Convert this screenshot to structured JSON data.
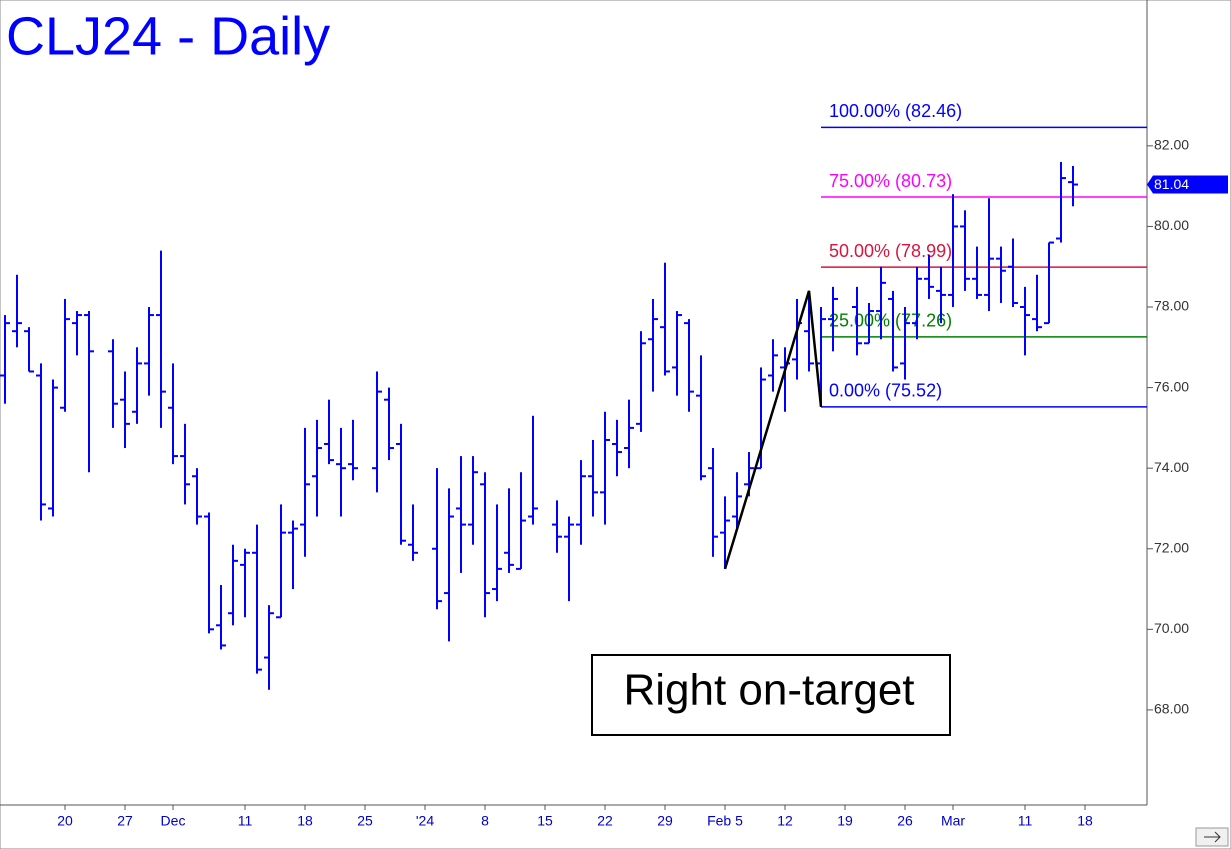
{
  "chart_data": {
    "type": "ohlc",
    "title": "CLJ24 - Daily",
    "color": "#0000ff",
    "categories": [
      null,
      null,
      null,
      null,
      null,
      "20",
      null,
      null,
      null,
      null,
      "27",
      null,
      null,
      null,
      "Dec",
      null,
      null,
      null,
      null,
      null,
      "11",
      null,
      null,
      null,
      null,
      "18",
      null,
      null,
      null,
      null,
      "25",
      null,
      null,
      null,
      null,
      "'24",
      null,
      null,
      null,
      null,
      "8",
      null,
      null,
      null,
      null,
      "15",
      null,
      null,
      null,
      null,
      "22",
      null,
      null,
      null,
      null,
      "29",
      null,
      null,
      null,
      null,
      "Feb 5",
      null,
      null,
      null,
      null,
      "12",
      null,
      null,
      null,
      null,
      "19",
      null,
      null,
      null,
      null,
      "26",
      null,
      null,
      null,
      "Mar",
      null,
      null,
      null,
      null,
      null,
      "11",
      null,
      null,
      null,
      null,
      "18",
      null,
      null,
      null,
      null
    ],
    "ohlc": [
      [
        76.3,
        77.8,
        75.6,
        77.6
      ],
      [
        77.4,
        78.8,
        77.0,
        77.6
      ],
      [
        77.4,
        77.5,
        76.4,
        76.4
      ],
      [
        76.3,
        76.6,
        72.7,
        73.1
      ],
      [
        73.0,
        76.2,
        72.8,
        76.0
      ],
      [
        75.5,
        78.2,
        75.4,
        77.7
      ],
      [
        77.6,
        77.9,
        76.8,
        77.8
      ],
      [
        77.8,
        77.9,
        73.9,
        76.9
      ],
      null,
      [
        76.9,
        77.2,
        75.0,
        75.6
      ],
      [
        75.7,
        76.4,
        74.5,
        75.1
      ],
      [
        75.4,
        77.0,
        75.1,
        76.6
      ],
      [
        76.6,
        78.0,
        75.8,
        77.8
      ],
      [
        77.8,
        79.4,
        75.0,
        75.9
      ],
      [
        75.5,
        76.6,
        74.1,
        74.3
      ],
      [
        74.3,
        75.1,
        73.1,
        73.6
      ],
      [
        73.8,
        74.0,
        72.6,
        72.8
      ],
      [
        72.8,
        72.9,
        69.9,
        70.0
      ],
      [
        70.1,
        71.1,
        69.5,
        69.6
      ],
      [
        70.4,
        72.1,
        70.1,
        71.7
      ],
      [
        71.6,
        72.0,
        70.3,
        71.9
      ],
      [
        71.9,
        72.6,
        68.9,
        69.0
      ],
      [
        69.3,
        70.6,
        68.5,
        70.4
      ],
      [
        70.3,
        73.1,
        70.3,
        72.4
      ],
      [
        72.4,
        72.7,
        71.0,
        72.5
      ],
      [
        72.6,
        75.0,
        71.8,
        73.6
      ],
      [
        73.8,
        75.2,
        72.8,
        74.5
      ],
      [
        74.6,
        75.7,
        74.1,
        74.2
      ],
      [
        74.1,
        75.0,
        72.8,
        74.0
      ],
      [
        74.1,
        75.2,
        73.7,
        74.0
      ],
      null,
      [
        74.0,
        76.4,
        73.4,
        75.9
      ],
      [
        75.7,
        76.0,
        74.2,
        74.5
      ],
      [
        74.6,
        75.1,
        72.1,
        72.2
      ],
      [
        72.1,
        73.1,
        71.7,
        71.9
      ],
      null,
      [
        72.0,
        74.0,
        70.5,
        70.7
      ],
      [
        70.9,
        73.5,
        69.7,
        72.8
      ],
      [
        73.0,
        74.3,
        71.4,
        72.6
      ],
      [
        72.6,
        74.3,
        72.1,
        73.9
      ],
      [
        73.6,
        73.9,
        70.3,
        70.9
      ],
      [
        71.0,
        73.1,
        70.7,
        71.5
      ],
      [
        71.9,
        73.5,
        71.4,
        71.6
      ],
      [
        71.5,
        73.9,
        71.5,
        72.7
      ],
      [
        72.8,
        75.3,
        72.6,
        73.0
      ],
      null,
      [
        72.6,
        73.2,
        71.9,
        72.3
      ],
      [
        72.3,
        72.8,
        70.7,
        72.6
      ],
      [
        72.6,
        74.2,
        72.1,
        73.8
      ],
      [
        73.8,
        74.7,
        72.8,
        73.4
      ],
      [
        73.4,
        75.4,
        72.6,
        74.7
      ],
      [
        74.6,
        75.2,
        73.8,
        74.4
      ],
      [
        74.5,
        75.7,
        74.0,
        75.0
      ],
      [
        75.1,
        77.4,
        74.9,
        77.1
      ],
      [
        77.2,
        78.2,
        75.9,
        77.7
      ],
      [
        77.5,
        79.1,
        76.3,
        76.4
      ],
      [
        76.5,
        77.9,
        75.8,
        77.8
      ],
      [
        77.6,
        77.7,
        75.4,
        75.9
      ],
      [
        75.8,
        76.8,
        73.7,
        73.8
      ],
      [
        74.0,
        74.5,
        71.8,
        72.3
      ],
      [
        72.4,
        73.3,
        71.5,
        72.7
      ],
      [
        72.8,
        73.9,
        72.5,
        73.3
      ],
      [
        73.6,
        74.4,
        73.3,
        74.0
      ],
      [
        74.0,
        76.5,
        74.0,
        76.2
      ],
      [
        76.3,
        77.2,
        75.9,
        76.8
      ],
      [
        76.5,
        77.0,
        75.4,
        76.6
      ],
      [
        76.7,
        78.2,
        76.2,
        77.6
      ],
      [
        77.4,
        78.4,
        76.4,
        76.6
      ],
      [
        76.6,
        78.0,
        75.52,
        77.7
      ],
      [
        77.7,
        78.5,
        76.9,
        78.2
      ],
      null,
      [
        78.0,
        78.5,
        76.8,
        77.1
      ],
      [
        77.1,
        78.1,
        77.1,
        77.9
      ],
      [
        77.9,
        79.0,
        77.2,
        78.6
      ],
      [
        78.2,
        78.4,
        76.4,
        76.5
      ],
      [
        76.6,
        78.0,
        76.2,
        77.6
      ],
      [
        77.6,
        79.0,
        77.2,
        78.7
      ],
      [
        78.7,
        79.3,
        78.2,
        78.5
      ],
      [
        78.4,
        79.0,
        77.6,
        78.3
      ],
      [
        78.3,
        80.8,
        78.0,
        80.0
      ],
      [
        80.0,
        80.4,
        78.4,
        78.7
      ],
      [
        78.7,
        79.5,
        78.2,
        78.3
      ],
      [
        78.3,
        80.7,
        77.9,
        79.2
      ],
      [
        79.2,
        79.5,
        78.1,
        78.9
      ],
      [
        79.0,
        79.7,
        78.0,
        78.1
      ],
      [
        78.0,
        78.5,
        76.8,
        77.8
      ],
      [
        77.7,
        78.8,
        77.4,
        77.5
      ],
      [
        77.6,
        79.6,
        77.6,
        79.6
      ],
      [
        79.7,
        81.6,
        79.6,
        81.2
      ],
      [
        81.1,
        81.5,
        80.5,
        81.04
      ],
      null,
      null,
      null,
      null,
      null
    ],
    "ylim": [
      65.64,
      85.62
    ],
    "yticks": [
      {
        "value": 68,
        "label": "68.00"
      },
      {
        "value": 70,
        "label": "70.00"
      },
      {
        "value": 72,
        "label": "72.00"
      },
      {
        "value": 74,
        "label": "74.00"
      },
      {
        "value": 76,
        "label": "76.00"
      },
      {
        "value": 78,
        "label": "78.00"
      },
      {
        "value": 80,
        "label": "80.00"
      },
      {
        "value": 82,
        "label": "82.00"
      }
    ],
    "last_price": 81.04,
    "swing": {
      "x": [
        60,
        67,
        68
      ],
      "y": [
        71.5,
        78.4,
        75.52
      ],
      "color": "#000000"
    },
    "levels": [
      {
        "label": "100.00% (82.46)",
        "value": 82.46,
        "color": "#0000ff"
      },
      {
        "label": "75.00% (80.73)",
        "value": 80.73,
        "color": "#ff00ff"
      },
      {
        "label": "50.00% (78.99)",
        "value": 78.99,
        "color": "#dc143c"
      },
      {
        "label": "25.00% (77.26)",
        "value": 77.26,
        "color": "#008000"
      },
      {
        "label": "0.00% (75.52)",
        "value": 75.52,
        "color": "#0000ff"
      }
    ],
    "annotation": "Right on-target"
  }
}
